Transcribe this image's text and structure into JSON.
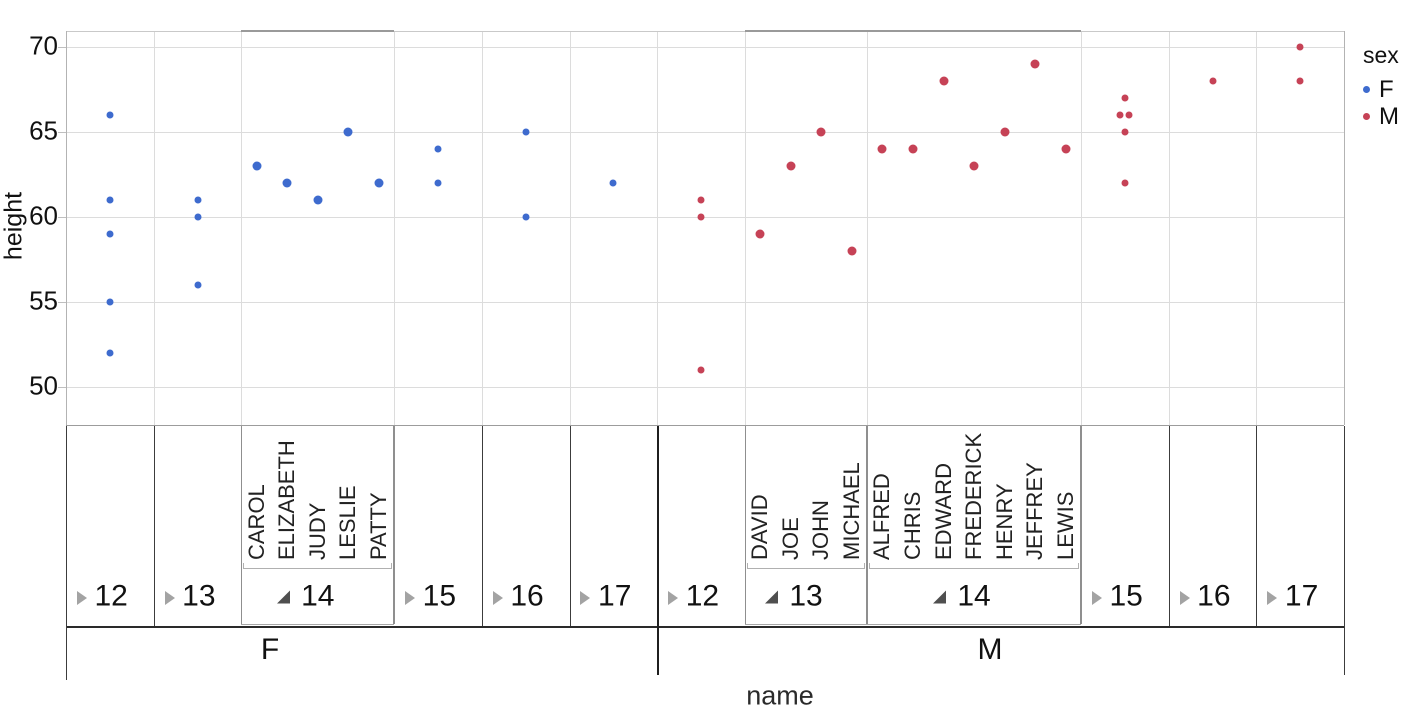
{
  "chart_data": {
    "type": "scatter",
    "title": "",
    "xlabel": "name",
    "ylabel": "height",
    "ylim": [
      47.5,
      71.5
    ],
    "yticks": [
      70,
      65,
      60,
      55,
      50
    ],
    "grid": true,
    "x_nesting": [
      "sex",
      "age",
      "name"
    ],
    "legend": {
      "title": "sex",
      "position": "top-right",
      "entries": [
        {
          "label": "F",
          "color": "#3e6bce"
        },
        {
          "label": "M",
          "color": "#c64256"
        }
      ]
    },
    "groups": [
      {
        "sex": "F",
        "ages": [
          {
            "age": 12,
            "expanded": false,
            "heights": [
              66,
              61,
              59,
              55,
              52
            ]
          },
          {
            "age": 13,
            "expanded": false,
            "heights": [
              61,
              60,
              56
            ]
          },
          {
            "age": 14,
            "expanded": true,
            "points": [
              {
                "name": "CAROL",
                "height": 63
              },
              {
                "name": "ELIZABETH",
                "height": 62
              },
              {
                "name": "JUDY",
                "height": 61
              },
              {
                "name": "LESLIE",
                "height": 65
              },
              {
                "name": "PATTY",
                "height": 62
              }
            ]
          },
          {
            "age": 15,
            "expanded": false,
            "heights": [
              64,
              62
            ]
          },
          {
            "age": 16,
            "expanded": false,
            "heights": [
              65,
              60
            ]
          },
          {
            "age": 17,
            "expanded": false,
            "heights": [
              62
            ]
          }
        ]
      },
      {
        "sex": "M",
        "ages": [
          {
            "age": 12,
            "expanded": false,
            "heights": [
              61,
              60,
              51
            ]
          },
          {
            "age": 13,
            "expanded": true,
            "points": [
              {
                "name": "DAVID",
                "height": 59
              },
              {
                "name": "JOE",
                "height": 63
              },
              {
                "name": "JOHN",
                "height": 65
              },
              {
                "name": "MICHAEL",
                "height": 58
              }
            ]
          },
          {
            "age": 14,
            "expanded": true,
            "points": [
              {
                "name": "ALFRED",
                "height": 64
              },
              {
                "name": "CHRIS",
                "height": 64
              },
              {
                "name": "EDWARD",
                "height": 68
              },
              {
                "name": "FREDERICK",
                "height": 63
              },
              {
                "name": "HENRY",
                "height": 65
              },
              {
                "name": "JEFFREY",
                "height": 69
              },
              {
                "name": "LEWIS",
                "height": 64
              }
            ]
          },
          {
            "age": 15,
            "expanded": false,
            "heights": [
              67,
              66,
              66,
              65,
              62
            ]
          },
          {
            "age": 16,
            "expanded": false,
            "heights": [
              68
            ]
          },
          {
            "age": 17,
            "expanded": false,
            "heights": [
              70,
              68
            ]
          }
        ]
      }
    ]
  },
  "colors": {
    "F": "#3e6bce",
    "M": "#c64256"
  }
}
